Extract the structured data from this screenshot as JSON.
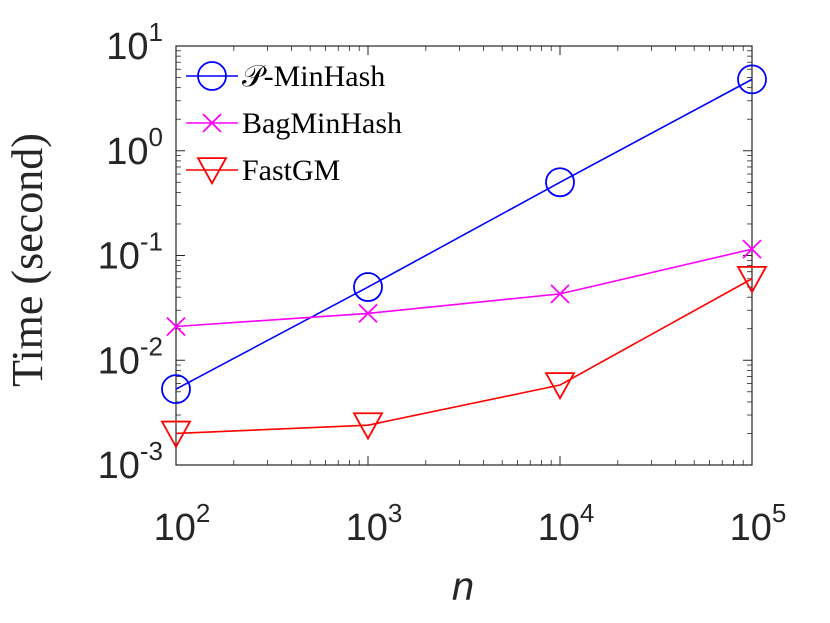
{
  "chart_data": {
    "type": "line",
    "title": "",
    "xlabel": "n",
    "ylabel": "Time (second)",
    "x_scale": "log",
    "y_scale": "log",
    "x": [
      100,
      1000,
      10000,
      100000
    ],
    "xlim": [
      100,
      100000
    ],
    "ylim": [
      0.001,
      10
    ],
    "x_ticks": [
      {
        "base": "10",
        "exp": "2"
      },
      {
        "base": "10",
        "exp": "3"
      },
      {
        "base": "10",
        "exp": "4"
      },
      {
        "base": "10",
        "exp": "5"
      }
    ],
    "y_ticks": [
      {
        "base": "10",
        "exp": "-3"
      },
      {
        "base": "10",
        "exp": "-2"
      },
      {
        "base": "10",
        "exp": "-1"
      },
      {
        "base": "10",
        "exp": "0"
      },
      {
        "base": "10",
        "exp": "1"
      }
    ],
    "grid": false,
    "legend_position": "top-left",
    "series": [
      {
        "name": "𝒫-MinHash",
        "color": "#0000ff",
        "marker": "circle",
        "values": [
          0.0053,
          0.05,
          0.5,
          4.8
        ]
      },
      {
        "name": "BagMinHash",
        "color": "#ff00ff",
        "marker": "x",
        "values": [
          0.021,
          0.028,
          0.043,
          0.115
        ]
      },
      {
        "name": "FastGM",
        "color": "#ff0000",
        "marker": "triangle-down",
        "values": [
          0.002,
          0.0024,
          0.0058,
          0.06
        ]
      }
    ]
  }
}
